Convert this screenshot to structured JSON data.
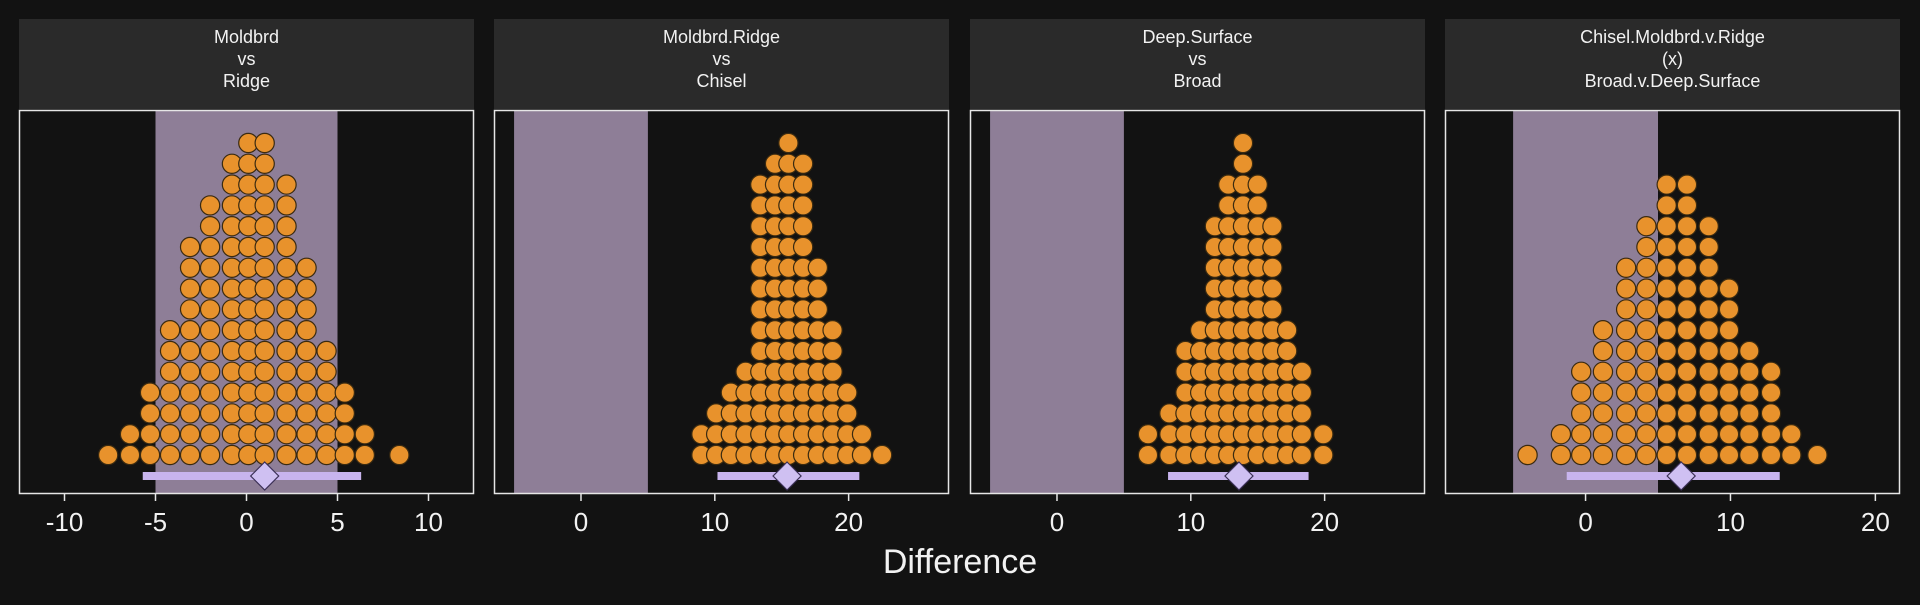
{
  "chart_data": {
    "type": "dotplot",
    "xlabel": "Difference",
    "colors": {
      "background": "#121212",
      "strip": "#2a2a2a",
      "rope": "#8e7e97",
      "dot_fill": "#e8922c",
      "dot_stroke": "#3a2a10",
      "interval": "#c8b4ee",
      "point": "#cfc0f2",
      "frame": "#e6e6e6",
      "text": "#f2f2f2"
    },
    "panels": [
      {
        "strip_lines": [
          "Moldbrd",
          "vs",
          "Ridge"
        ],
        "xlim": [
          -12.5,
          12.5
        ],
        "ticks": [
          -10,
          -5,
          0,
          5,
          10
        ],
        "tick_labels": [
          "-10",
          "-5",
          "0",
          "5",
          "10"
        ],
        "rope": [
          -5,
          5
        ],
        "interval": [
          -5.7,
          6.3
        ],
        "point_estimate": 1.0,
        "dot_columns": [
          {
            "x": -7.6,
            "count": 1
          },
          {
            "x": -6.4,
            "count": 2
          },
          {
            "x": -5.3,
            "count": 4
          },
          {
            "x": -4.2,
            "count": 7
          },
          {
            "x": -3.1,
            "count": 11
          },
          {
            "x": -2.0,
            "count": 13
          },
          {
            "x": -0.8,
            "count": 15
          },
          {
            "x": 0.1,
            "count": 16
          },
          {
            "x": 1.0,
            "count": 16
          },
          {
            "x": 2.2,
            "count": 14
          },
          {
            "x": 3.3,
            "count": 10
          },
          {
            "x": 4.4,
            "count": 6
          },
          {
            "x": 5.4,
            "count": 4
          },
          {
            "x": 6.5,
            "count": 2
          },
          {
            "x": 8.4,
            "count": 1
          }
        ]
      },
      {
        "strip_lines": [
          "Moldbrd.Ridge",
          "vs",
          "Chisel"
        ],
        "xlim": [
          -6.5,
          27.5
        ],
        "ticks": [
          0,
          10,
          20
        ],
        "tick_labels": [
          "0",
          "10",
          "20"
        ],
        "rope": [
          -5,
          5
        ],
        "interval": [
          10.2,
          20.8
        ],
        "point_estimate": 15.4,
        "dot_columns": [
          {
            "x": 9.0,
            "count": 2
          },
          {
            "x": 10.1,
            "count": 3
          },
          {
            "x": 11.2,
            "count": 4
          },
          {
            "x": 12.3,
            "count": 5
          },
          {
            "x": 13.4,
            "count": 14
          },
          {
            "x": 14.5,
            "count": 15
          },
          {
            "x": 15.5,
            "count": 16
          },
          {
            "x": 16.6,
            "count": 15
          },
          {
            "x": 17.7,
            "count": 10
          },
          {
            "x": 18.8,
            "count": 7
          },
          {
            "x": 19.9,
            "count": 4
          },
          {
            "x": 21.0,
            "count": 2
          },
          {
            "x": 22.5,
            "count": 1
          }
        ]
      },
      {
        "strip_lines": [
          "Deep.Surface",
          "vs",
          "Broad"
        ],
        "xlim": [
          -6.5,
          27.5
        ],
        "ticks": [
          0,
          10,
          20
        ],
        "tick_labels": [
          "0",
          "10",
          "20"
        ],
        "rope": [
          -5,
          5
        ],
        "interval": [
          8.3,
          18.8
        ],
        "point_estimate": 13.6,
        "dot_columns": [
          {
            "x": 6.8,
            "count": 2
          },
          {
            "x": 8.4,
            "count": 3
          },
          {
            "x": 9.6,
            "count": 6
          },
          {
            "x": 10.7,
            "count": 7
          },
          {
            "x": 11.8,
            "count": 12
          },
          {
            "x": 12.8,
            "count": 14
          },
          {
            "x": 13.9,
            "count": 16
          },
          {
            "x": 15.0,
            "count": 14
          },
          {
            "x": 16.1,
            "count": 12
          },
          {
            "x": 17.2,
            "count": 7
          },
          {
            "x": 18.3,
            "count": 5
          },
          {
            "x": 19.9,
            "count": 2
          }
        ]
      },
      {
        "strip_lines": [
          "Chisel.Moldbrd.v.Ridge",
          "(x)",
          "Broad.v.Deep.Surface"
        ],
        "xlim": [
          -9.7,
          21.7
        ],
        "ticks": [
          0,
          10,
          20
        ],
        "tick_labels": [
          "0",
          "10",
          "20"
        ],
        "rope": [
          -5,
          5
        ],
        "interval": [
          -1.3,
          13.4
        ],
        "point_estimate": 6.6,
        "dot_columns": [
          {
            "x": -4.0,
            "count": 1
          },
          {
            "x": -1.7,
            "count": 2
          },
          {
            "x": -0.3,
            "count": 5
          },
          {
            "x": 1.2,
            "count": 7
          },
          {
            "x": 2.8,
            "count": 10
          },
          {
            "x": 4.2,
            "count": 12
          },
          {
            "x": 5.6,
            "count": 14
          },
          {
            "x": 7.0,
            "count": 14
          },
          {
            "x": 8.5,
            "count": 12
          },
          {
            "x": 9.9,
            "count": 9
          },
          {
            "x": 11.3,
            "count": 6
          },
          {
            "x": 12.8,
            "count": 5
          },
          {
            "x": 14.2,
            "count": 2
          },
          {
            "x": 16.0,
            "count": 1
          }
        ]
      }
    ]
  }
}
